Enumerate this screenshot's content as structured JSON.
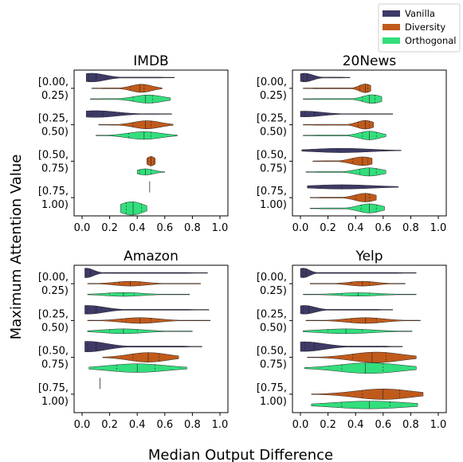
{
  "chart_data": {
    "type": "violin",
    "xlabel": "Median Output Difference",
    "ylabel": "Maximum Attention Value",
    "xlim": [
      0.0,
      1.0
    ],
    "xticks": [
      "0.0",
      "0.2",
      "0.4",
      "0.6",
      "0.8",
      "1.0"
    ],
    "categories": [
      {
        "line1": "[0.00,",
        "line2": "0.25)"
      },
      {
        "line1": "[0.25,",
        "line2": "0.50)"
      },
      {
        "line1": "[0.50,",
        "line2": "0.75)"
      },
      {
        "line1": "[0.75,",
        "line2": "1.00)"
      }
    ],
    "legend": {
      "placement": "top-right",
      "entries": [
        {
          "label": "Vanilla",
          "color": "#3d3a66"
        },
        {
          "label": "Diversity",
          "color": "#c05a1b"
        },
        {
          "label": "Orthogonal",
          "color": "#33de7c"
        }
      ]
    },
    "panels": [
      {
        "title": "IMDB",
        "groups": [
          [
            {
              "series": "Vanilla",
              "min": 0.03,
              "max": 0.67,
              "peak": 0.07,
              "median": 0.1,
              "q1": 0.05,
              "q3": 0.18,
              "width": 0.9
            },
            {
              "series": "Diversity",
              "min": 0.07,
              "max": 0.58,
              "peak": 0.43,
              "median": 0.42,
              "q1": 0.35,
              "q3": 0.45,
              "width": 0.85
            },
            {
              "series": "Orthogonal",
              "min": 0.06,
              "max": 0.64,
              "peak": 0.48,
              "median": 0.46,
              "q1": 0.37,
              "q3": 0.51,
              "width": 0.85
            }
          ],
          [
            {
              "series": "Vanilla",
              "min": 0.03,
              "max": 0.65,
              "peak": 0.1,
              "median": 0.15,
              "q1": 0.07,
              "q3": 0.27,
              "width": 0.7
            },
            {
              "series": "Diversity",
              "min": 0.12,
              "max": 0.66,
              "peak": 0.47,
              "median": 0.46,
              "q1": 0.37,
              "q3": 0.5,
              "width": 0.85
            },
            {
              "series": "Orthogonal",
              "min": 0.1,
              "max": 0.69,
              "peak": 0.45,
              "median": 0.45,
              "q1": 0.34,
              "q3": 0.5,
              "width": 0.8
            }
          ],
          [
            {
              "series": "Diversity",
              "min": 0.47,
              "max": 0.53,
              "peak": 0.5,
              "median": 0.5,
              "q1": 0.48,
              "q3": 0.52,
              "width": 1.0
            },
            {
              "series": "Orthogonal",
              "min": 0.4,
              "max": 0.6,
              "peak": 0.46,
              "median": 0.46,
              "q1": 0.42,
              "q3": 0.5,
              "width": 0.65
            }
          ],
          [
            {
              "series": "Vanilla",
              "min": 0.49,
              "max": 0.49,
              "peak": 0.49,
              "median": 0.49,
              "q1": 0.49,
              "q3": 0.49,
              "width": 0.0
            },
            {
              "series": "Orthogonal",
              "min": 0.28,
              "max": 0.47,
              "peak": 0.36,
              "median": 0.37,
              "q1": 0.32,
              "q3": 0.43,
              "width": 1.4
            }
          ]
        ]
      },
      {
        "title": "20News",
        "groups": [
          [
            {
              "series": "Vanilla",
              "min": 0.0,
              "max": 0.36,
              "peak": 0.03,
              "median": 0.05,
              "q1": 0.02,
              "q3": 0.1,
              "width": 0.9
            },
            {
              "series": "Diversity",
              "min": 0.02,
              "max": 0.51,
              "peak": 0.47,
              "median": 0.47,
              "q1": 0.43,
              "q3": 0.49,
              "width": 0.9
            },
            {
              "series": "Orthogonal",
              "min": 0.02,
              "max": 0.59,
              "peak": 0.52,
              "median": 0.5,
              "q1": 0.45,
              "q3": 0.54,
              "width": 0.9
            }
          ],
          [
            {
              "series": "Vanilla",
              "min": 0.0,
              "max": 0.67,
              "peak": 0.03,
              "median": 0.1,
              "q1": 0.03,
              "q3": 0.2,
              "width": 0.6
            },
            {
              "series": "Diversity",
              "min": 0.02,
              "max": 0.53,
              "peak": 0.47,
              "median": 0.47,
              "q1": 0.42,
              "q3": 0.5,
              "width": 0.9
            },
            {
              "series": "Orthogonal",
              "min": 0.02,
              "max": 0.62,
              "peak": 0.5,
              "median": 0.5,
              "q1": 0.45,
              "q3": 0.55,
              "width": 0.9
            }
          ],
          [
            {
              "series": "Vanilla",
              "min": 0.01,
              "max": 0.73,
              "peak": 0.3,
              "median": 0.27,
              "q1": 0.15,
              "q3": 0.42,
              "width": 0.45
            },
            {
              "series": "Diversity",
              "min": 0.09,
              "max": 0.52,
              "peak": 0.45,
              "median": 0.45,
              "q1": 0.38,
              "q3": 0.49,
              "width": 0.9
            },
            {
              "series": "Orthogonal",
              "min": 0.04,
              "max": 0.62,
              "peak": 0.5,
              "median": 0.5,
              "q1": 0.43,
              "q3": 0.55,
              "width": 0.85
            }
          ],
          [
            {
              "series": "Vanilla",
              "min": 0.05,
              "max": 0.71,
              "peak": 0.3,
              "median": 0.3,
              "q1": 0.15,
              "q3": 0.45,
              "width": 0.45
            },
            {
              "series": "Diversity",
              "min": 0.07,
              "max": 0.55,
              "peak": 0.47,
              "median": 0.47,
              "q1": 0.4,
              "q3": 0.5,
              "width": 0.9
            },
            {
              "series": "Orthogonal",
              "min": 0.07,
              "max": 0.61,
              "peak": 0.5,
              "median": 0.5,
              "q1": 0.44,
              "q3": 0.55,
              "width": 0.95
            }
          ]
        ]
      },
      {
        "title": "Amazon",
        "groups": [
          [
            {
              "series": "Vanilla",
              "min": 0.02,
              "max": 0.91,
              "peak": 0.03,
              "median": 0.06,
              "q1": 0.03,
              "q3": 0.1,
              "width": 1.0
            },
            {
              "series": "Diversity",
              "min": 0.04,
              "max": 0.86,
              "peak": 0.35,
              "median": 0.35,
              "q1": 0.27,
              "q3": 0.42,
              "width": 0.5
            },
            {
              "series": "Orthogonal",
              "min": 0.04,
              "max": 0.78,
              "peak": 0.3,
              "median": 0.3,
              "q1": 0.2,
              "q3": 0.38,
              "width": 0.4
            }
          ],
          [
            {
              "series": "Vanilla",
              "min": 0.02,
              "max": 0.92,
              "peak": 0.04,
              "median": 0.1,
              "q1": 0.04,
              "q3": 0.2,
              "width": 0.9
            },
            {
              "series": "Diversity",
              "min": 0.04,
              "max": 0.93,
              "peak": 0.42,
              "median": 0.42,
              "q1": 0.32,
              "q3": 0.5,
              "width": 0.6
            },
            {
              "series": "Orthogonal",
              "min": 0.04,
              "max": 0.8,
              "peak": 0.3,
              "median": 0.3,
              "q1": 0.2,
              "q3": 0.4,
              "width": 0.5
            }
          ],
          [
            {
              "series": "Vanilla",
              "min": 0.02,
              "max": 0.87,
              "peak": 0.04,
              "median": 0.1,
              "q1": 0.04,
              "q3": 0.22,
              "width": 1.1
            },
            {
              "series": "Diversity",
              "min": 0.15,
              "max": 0.7,
              "peak": 0.48,
              "median": 0.48,
              "q1": 0.37,
              "q3": 0.56,
              "width": 1.0
            },
            {
              "series": "Orthogonal",
              "min": 0.05,
              "max": 0.76,
              "peak": 0.4,
              "median": 0.4,
              "q1": 0.25,
              "q3": 0.53,
              "width": 0.9
            }
          ],
          [
            {
              "series": "Vanilla",
              "min": 0.13,
              "max": 0.13,
              "peak": 0.13,
              "median": 0.13,
              "q1": 0.13,
              "q3": 0.13,
              "width": 0.0
            }
          ]
        ]
      },
      {
        "title": "Yelp",
        "groups": [
          [
            {
              "series": "Vanilla",
              "min": 0.0,
              "max": 0.84,
              "peak": 0.02,
              "median": 0.04,
              "q1": 0.02,
              "q3": 0.08,
              "width": 1.0
            },
            {
              "series": "Diversity",
              "min": 0.07,
              "max": 0.76,
              "peak": 0.45,
              "median": 0.45,
              "q1": 0.37,
              "q3": 0.5,
              "width": 0.5
            },
            {
              "series": "Orthogonal",
              "min": 0.02,
              "max": 0.84,
              "peak": 0.42,
              "median": 0.42,
              "q1": 0.3,
              "q3": 0.5,
              "width": 0.35
            }
          ],
          [
            {
              "series": "Vanilla",
              "min": 0.0,
              "max": 0.67,
              "peak": 0.03,
              "median": 0.06,
              "q1": 0.02,
              "q3": 0.12,
              "width": 0.9
            },
            {
              "series": "Diversity",
              "min": 0.04,
              "max": 0.87,
              "peak": 0.47,
              "median": 0.47,
              "q1": 0.37,
              "q3": 0.55,
              "width": 0.6
            },
            {
              "series": "Orthogonal",
              "min": 0.02,
              "max": 0.81,
              "peak": 0.33,
              "median": 0.33,
              "q1": 0.2,
              "q3": 0.45,
              "width": 0.5
            }
          ],
          [
            {
              "series": "Vanilla",
              "min": 0.0,
              "max": 0.74,
              "peak": 0.03,
              "median": 0.1,
              "q1": 0.03,
              "q3": 0.22,
              "width": 1.0
            },
            {
              "series": "Diversity",
              "min": 0.05,
              "max": 0.84,
              "peak": 0.55,
              "median": 0.52,
              "q1": 0.38,
              "q3": 0.62,
              "width": 1.1
            },
            {
              "series": "Orthogonal",
              "min": 0.03,
              "max": 0.84,
              "peak": 0.5,
              "median": 0.47,
              "q1": 0.3,
              "q3": 0.6,
              "width": 1.1
            }
          ],
          [
            {
              "series": "Diversity",
              "min": 0.08,
              "max": 0.89,
              "peak": 0.6,
              "median": 0.6,
              "q1": 0.45,
              "q3": 0.72,
              "width": 1.1
            },
            {
              "series": "Orthogonal",
              "min": 0.08,
              "max": 0.85,
              "peak": 0.5,
              "median": 0.5,
              "q1": 0.3,
              "q3": 0.65,
              "width": 0.8
            }
          ]
        ]
      }
    ]
  }
}
